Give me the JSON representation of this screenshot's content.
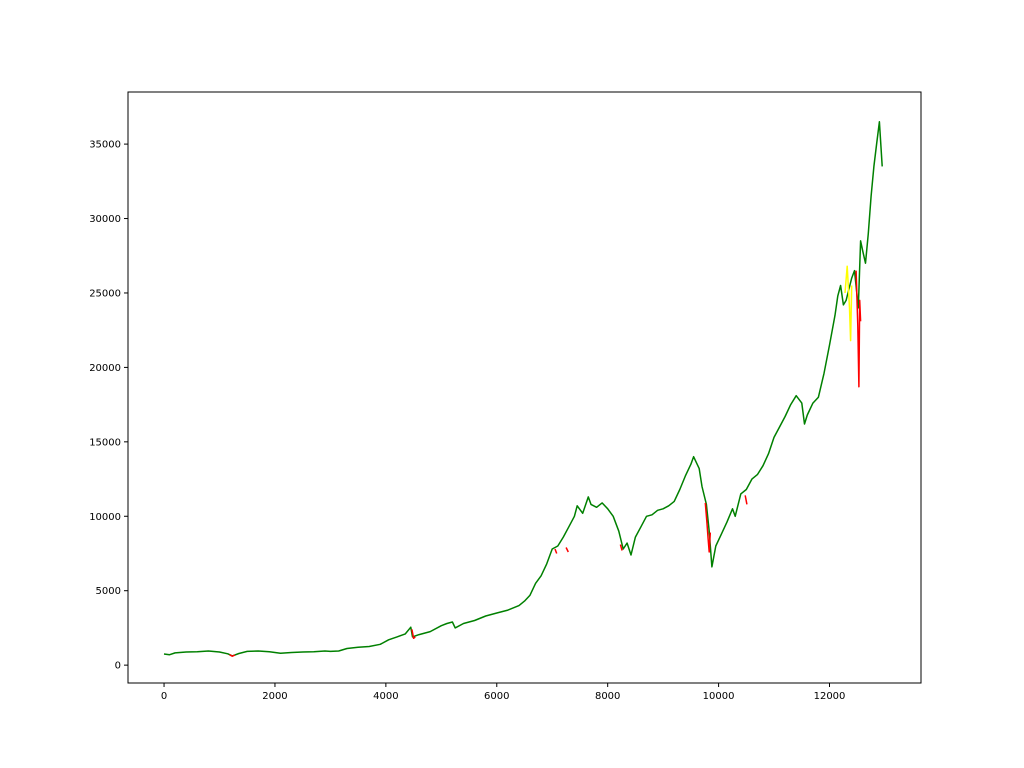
{
  "chart_data": {
    "type": "line",
    "title": "",
    "xlabel": "",
    "ylabel": "",
    "xlim": [
      -650,
      13650
    ],
    "ylim": [
      -1200,
      38500
    ],
    "grid": false,
    "legend": "none",
    "x_ticks": [
      0,
      2000,
      4000,
      6000,
      8000,
      10000,
      12000
    ],
    "y_ticks": [
      0,
      5000,
      10000,
      15000,
      20000,
      25000,
      30000,
      35000
    ],
    "x_tick_labels": [
      "0",
      "2000",
      "4000",
      "6000",
      "8000",
      "10000",
      "12000"
    ],
    "y_tick_labels": [
      "0",
      "5000",
      "10000",
      "15000",
      "20000",
      "25000",
      "30000",
      "35000"
    ],
    "series": [
      {
        "color": "#008000",
        "points": [
          [
            0,
            750
          ],
          [
            100,
            700
          ],
          [
            200,
            820
          ],
          [
            400,
            880
          ],
          [
            600,
            900
          ],
          [
            800,
            950
          ],
          [
            1000,
            880
          ],
          [
            1150,
            760
          ],
          [
            1230,
            620
          ],
          [
            1350,
            780
          ],
          [
            1500,
            920
          ],
          [
            1700,
            950
          ],
          [
            1900,
            900
          ],
          [
            2100,
            800
          ],
          [
            2300,
            850
          ],
          [
            2500,
            880
          ],
          [
            2700,
            900
          ],
          [
            2900,
            950
          ],
          [
            3000,
            920
          ],
          [
            3150,
            950
          ],
          [
            3300,
            1120
          ],
          [
            3500,
            1200
          ],
          [
            3700,
            1250
          ],
          [
            3900,
            1400
          ],
          [
            4050,
            1700
          ],
          [
            4200,
            1900
          ],
          [
            4350,
            2100
          ],
          [
            4450,
            2550
          ],
          [
            4480,
            1900
          ],
          [
            4600,
            2050
          ],
          [
            4800,
            2250
          ],
          [
            5000,
            2650
          ],
          [
            5100,
            2800
          ],
          [
            5200,
            2900
          ],
          [
            5250,
            2500
          ],
          [
            5400,
            2800
          ],
          [
            5600,
            3000
          ],
          [
            5800,
            3300
          ],
          [
            6000,
            3500
          ],
          [
            6200,
            3700
          ],
          [
            6400,
            4000
          ],
          [
            6500,
            4300
          ],
          [
            6600,
            4700
          ],
          [
            6700,
            5500
          ],
          [
            6800,
            6000
          ],
          [
            6900,
            6800
          ],
          [
            7000,
            7800
          ],
          [
            7100,
            8000
          ],
          [
            7200,
            8600
          ],
          [
            7300,
            9300
          ],
          [
            7400,
            10000
          ],
          [
            7450,
            10700
          ],
          [
            7550,
            10200
          ],
          [
            7650,
            11300
          ],
          [
            7700,
            10800
          ],
          [
            7800,
            10600
          ],
          [
            7900,
            10900
          ],
          [
            8000,
            10500
          ],
          [
            8100,
            10000
          ],
          [
            8200,
            9000
          ],
          [
            8280,
            7800
          ],
          [
            8350,
            8200
          ],
          [
            8420,
            7400
          ],
          [
            8500,
            8600
          ],
          [
            8600,
            9300
          ],
          [
            8700,
            10000
          ],
          [
            8800,
            10100
          ],
          [
            8900,
            10400
          ],
          [
            9000,
            10500
          ],
          [
            9100,
            10700
          ],
          [
            9200,
            11000
          ],
          [
            9300,
            11800
          ],
          [
            9400,
            12700
          ],
          [
            9500,
            13500
          ],
          [
            9550,
            14000
          ],
          [
            9650,
            13200
          ],
          [
            9700,
            12000
          ],
          [
            9780,
            10800
          ],
          [
            9830,
            9000
          ],
          [
            9880,
            6600
          ],
          [
            9950,
            8000
          ],
          [
            10050,
            8800
          ],
          [
            10150,
            9600
          ],
          [
            10250,
            10500
          ],
          [
            10300,
            10000
          ],
          [
            10400,
            11500
          ],
          [
            10500,
            11800
          ],
          [
            10600,
            12500
          ],
          [
            10700,
            12800
          ],
          [
            10800,
            13400
          ],
          [
            10900,
            14200
          ],
          [
            11000,
            15300
          ],
          [
            11100,
            16000
          ],
          [
            11200,
            16700
          ],
          [
            11300,
            17500
          ],
          [
            11400,
            18100
          ],
          [
            11500,
            17600
          ],
          [
            11550,
            16200
          ],
          [
            11600,
            16800
          ],
          [
            11700,
            17600
          ],
          [
            11800,
            18000
          ],
          [
            11900,
            19600
          ],
          [
            12000,
            21500
          ],
          [
            12100,
            23500
          ],
          [
            12150,
            24800
          ],
          [
            12200,
            25500
          ],
          [
            12250,
            24200
          ],
          [
            12300,
            24500
          ],
          [
            12400,
            26000
          ],
          [
            12450,
            26500
          ],
          [
            12520,
            24000
          ],
          [
            12560,
            28500
          ],
          [
            12600,
            27800
          ],
          [
            12650,
            27000
          ],
          [
            12700,
            29000
          ],
          [
            12750,
            31500
          ],
          [
            12800,
            33500
          ],
          [
            12850,
            35000
          ],
          [
            12900,
            36500
          ],
          [
            12950,
            33500
          ]
        ]
      },
      {
        "color": "#ff0000",
        "points": [
          [
            1180,
            700
          ],
          [
            1230,
            600
          ],
          [
            1280,
            680
          ]
        ]
      },
      {
        "color": "#ff0000",
        "points": [
          [
            4470,
            2400
          ],
          [
            4500,
            1800
          ],
          [
            4530,
            1900
          ]
        ]
      },
      {
        "color": "#ff0000",
        "points": [
          [
            7050,
            7800
          ],
          [
            7080,
            7500
          ]
        ]
      },
      {
        "color": "#ff0000",
        "points": [
          [
            7250,
            7900
          ],
          [
            7290,
            7600
          ]
        ]
      },
      {
        "color": "#ff0000",
        "points": [
          [
            8230,
            8100
          ],
          [
            8260,
            7700
          ]
        ]
      },
      {
        "color": "#ff0000",
        "points": [
          [
            9760,
            10900
          ],
          [
            9790,
            9600
          ],
          [
            9810,
            8500
          ],
          [
            9830,
            7600
          ],
          [
            9850,
            8900
          ]
        ]
      },
      {
        "color": "#ff0000",
        "points": [
          [
            10480,
            11400
          ],
          [
            10510,
            10800
          ]
        ]
      },
      {
        "color": "#ffff00",
        "points": [
          [
            12280,
            25000
          ],
          [
            12320,
            26800
          ],
          [
            12360,
            24000
          ],
          [
            12380,
            21800
          ],
          [
            12400,
            25500
          ]
        ]
      },
      {
        "color": "#ff0000",
        "points": [
          [
            12480,
            26500
          ],
          [
            12510,
            22800
          ],
          [
            12530,
            18700
          ],
          [
            12545,
            24500
          ],
          [
            12560,
            23100
          ]
        ]
      }
    ]
  }
}
